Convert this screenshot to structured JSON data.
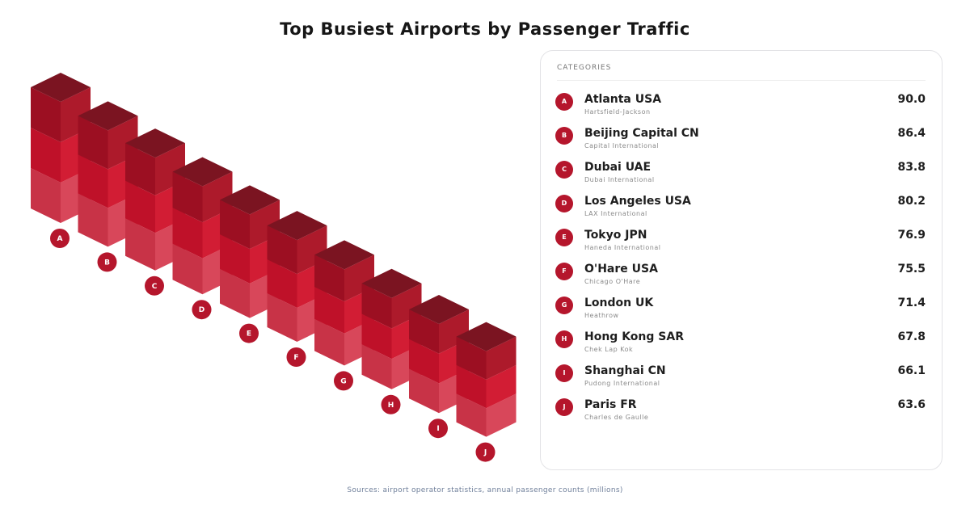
{
  "title": "Top Busiest Airports by Passenger Traffic",
  "panel": {
    "heading": "CATEGORIES"
  },
  "colors": {
    "top": "#7b1421",
    "left": [
      "#9c0f22",
      "#bf1129",
      "#c83347"
    ],
    "right": [
      "#ad1a2b",
      "#d21d34",
      "#d8475a"
    ],
    "badge": "#b5162c"
  },
  "chart_data": {
    "type": "bar",
    "categories": [
      "A",
      "B",
      "C",
      "D",
      "E",
      "F",
      "G",
      "H",
      "I",
      "J"
    ],
    "values": [
      90.0,
      86.4,
      83.8,
      80.2,
      76.9,
      75.5,
      71.4,
      67.8,
      66.1,
      63.6
    ],
    "title": "Top Busiest Airports by Passenger Traffic",
    "xlabel": "",
    "ylabel": "",
    "grid": false,
    "legend": "right"
  },
  "items": [
    {
      "badge": "A",
      "name": "Atlanta USA",
      "sub": "Hartsfield-Jackson",
      "value": "90.0"
    },
    {
      "badge": "B",
      "name": "Beijing Capital CN",
      "sub": "Capital International",
      "value": "86.4"
    },
    {
      "badge": "C",
      "name": "Dubai UAE",
      "sub": "Dubai International",
      "value": "83.8"
    },
    {
      "badge": "D",
      "name": "Los Angeles USA",
      "sub": "LAX International",
      "value": "80.2"
    },
    {
      "badge": "E",
      "name": "Tokyo JPN",
      "sub": "Haneda International",
      "value": "76.9"
    },
    {
      "badge": "F",
      "name": "O'Hare USA",
      "sub": "Chicago O'Hare",
      "value": "75.5"
    },
    {
      "badge": "G",
      "name": "London UK",
      "sub": "Heathrow",
      "value": "71.4"
    },
    {
      "badge": "H",
      "name": "Hong Kong SAR",
      "sub": "Chek Lap Kok",
      "value": "67.8"
    },
    {
      "badge": "I",
      "name": "Shanghai CN",
      "sub": "Pudong International",
      "value": "66.1"
    },
    {
      "badge": "J",
      "name": "Paris FR",
      "sub": "Charles de Gaulle",
      "value": "63.6"
    }
  ],
  "footer": "Sources: airport operator statistics, annual passenger counts (millions)"
}
